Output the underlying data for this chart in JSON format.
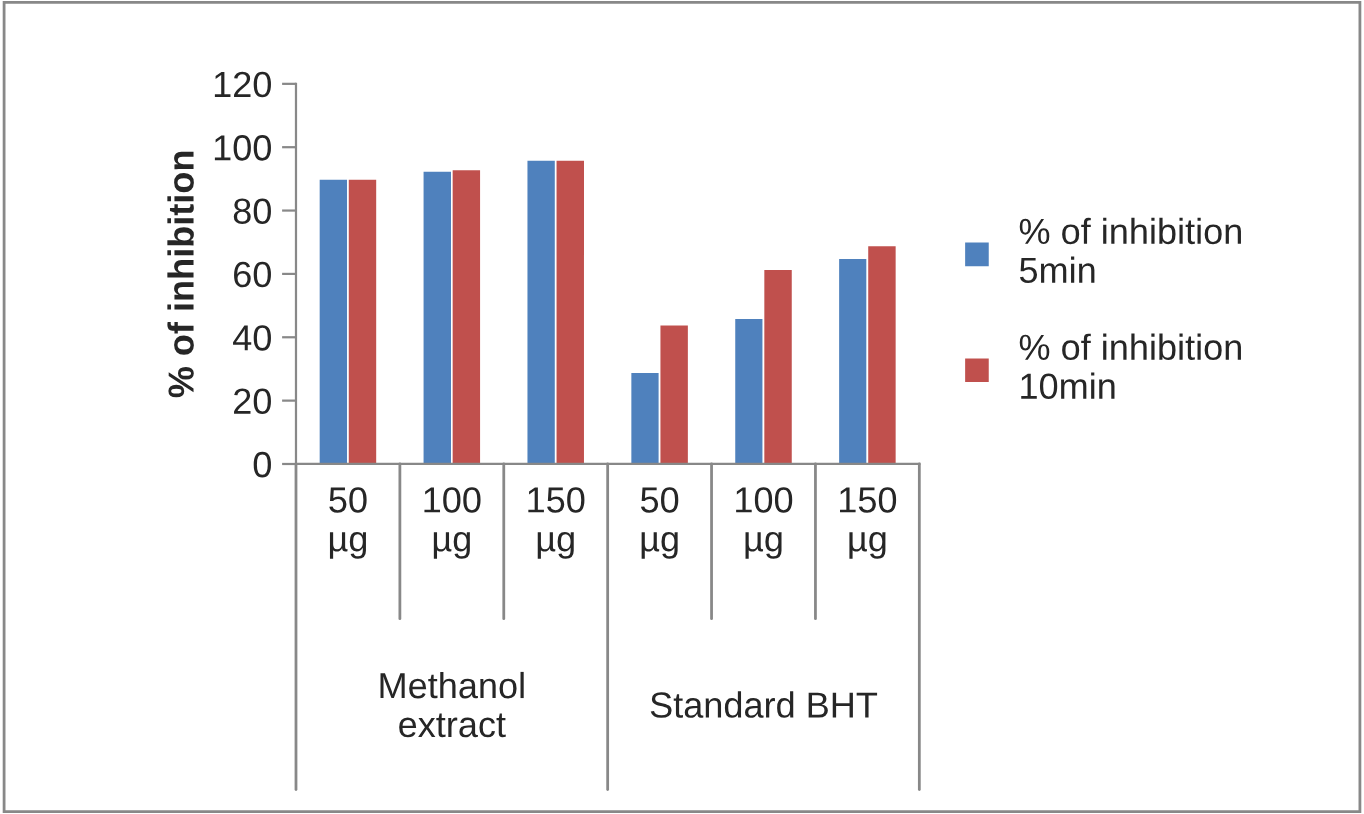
{
  "chart_data": {
    "type": "bar",
    "ylabel": "% of inhibition",
    "categories": [
      "50\nµg",
      "100\nµg",
      "150\nµg",
      "50\nµg",
      "100\nµg",
      "150\nµg"
    ],
    "annotations": [
      "Methanol\nextract",
      "Standard BHT"
    ],
    "series": [
      {
        "name": "% of inhibition\n5min",
        "color": "#4f81bd",
        "values": [
          90,
          92.5,
          96,
          29,
          46,
          65
        ]
      },
      {
        "name": "% of inhibition\n10min",
        "color": "#c0504d",
        "values": [
          90,
          93,
          96,
          44,
          61.5,
          69
        ]
      }
    ],
    "ylim": [
      0,
      120
    ],
    "yticks": [
      0,
      20,
      40,
      60,
      80,
      100,
      120
    ],
    "grid": false,
    "legend": "right"
  }
}
